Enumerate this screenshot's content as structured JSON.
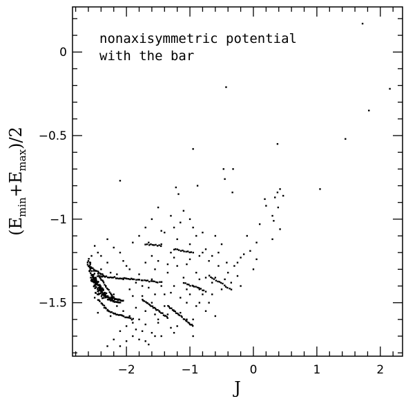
{
  "chart_data": {
    "type": "scatter",
    "title": "",
    "xlabel": "J",
    "ylabel": {
      "open": "(E",
      "sub1": "min",
      "mid": "+E",
      "sub2": "max",
      "close": ")/2"
    },
    "annotation": [
      "nonaxisymmetric potential",
      "with the bar"
    ],
    "xlim": [
      -2.85,
      2.35
    ],
    "ylim": [
      -1.82,
      0.27
    ],
    "xticks": [
      -2,
      -1,
      0,
      1,
      2
    ],
    "yticks": [
      0,
      -0.5,
      -1,
      -1.5
    ],
    "xtick_labels": [
      "−2",
      "−1",
      "0",
      "1",
      "2"
    ],
    "ytick_labels": [
      "0",
      "−0.5",
      "−1",
      "−1.5"
    ],
    "x_minor_step": 0.2,
    "y_minor_step": 0.1,
    "grid": false,
    "series": [
      {
        "points": [
          [
            1.72,
            0.17
          ],
          [
            -0.43,
            -0.21
          ],
          [
            2.15,
            -0.22
          ],
          [
            1.82,
            -0.35
          ],
          [
            1.45,
            -0.52
          ],
          [
            0.38,
            -0.55
          ],
          [
            -0.95,
            -0.58
          ],
          [
            -0.47,
            -0.7
          ],
          [
            -0.32,
            -0.7
          ],
          [
            -2.1,
            -0.77
          ],
          [
            -0.45,
            -0.76
          ],
          [
            -0.88,
            -0.8
          ],
          [
            -0.33,
            -0.84
          ],
          [
            0.42,
            -0.82
          ],
          [
            0.38,
            -0.84
          ],
          [
            0.47,
            -0.86
          ],
          [
            1.05,
            -0.82
          ],
          [
            0.34,
            -0.87
          ],
          [
            0.18,
            -0.88
          ],
          [
            -1.22,
            -0.81
          ],
          [
            -1.18,
            -0.85
          ],
          [
            0.2,
            -0.92
          ],
          [
            0.39,
            -0.93
          ],
          [
            0.3,
            -0.98
          ],
          [
            0.32,
            -1.01
          ],
          [
            0.1,
            -1.03
          ],
          [
            -0.1,
            -1.1
          ],
          [
            0.05,
            -1.14
          ],
          [
            -0.05,
            -1.19
          ],
          [
            -0.15,
            -1.21
          ],
          [
            -0.2,
            -1.23
          ],
          [
            -0.25,
            -1.26
          ],
          [
            -0.3,
            -1.28
          ],
          [
            -0.5,
            -1.15
          ],
          [
            -0.6,
            -1.1
          ],
          [
            -0.8,
            -1.2
          ],
          [
            -0.9,
            -1.1
          ],
          [
            -1.0,
            -1.0
          ],
          [
            -1.1,
            -0.95
          ],
          [
            -1.3,
            -0.98
          ],
          [
            -1.5,
            -0.93
          ],
          [
            -1.6,
            -1.0
          ],
          [
            -1.7,
            -1.05
          ],
          [
            -1.8,
            -1.1
          ],
          [
            -1.4,
            -1.08
          ],
          [
            -1.2,
            -1.12
          ],
          [
            -1.0,
            -1.15
          ],
          [
            -0.7,
            -1.25
          ],
          [
            -0.6,
            -1.35
          ],
          [
            -0.55,
            -1.28
          ],
          [
            -0.4,
            -1.32
          ],
          [
            -2.3,
            -1.12
          ],
          [
            -2.2,
            -1.17
          ],
          [
            -2.1,
            -1.2
          ],
          [
            -2.05,
            -1.25
          ],
          [
            -2.4,
            -1.3
          ],
          [
            -1.0,
            -1.24
          ],
          [
            -0.9,
            -1.32
          ],
          [
            -1.9,
            -1.14
          ],
          [
            -1.65,
            -1.14
          ],
          [
            -1.45,
            -1.15
          ],
          [
            -1.6,
            -1.22
          ],
          [
            -1.5,
            -1.25
          ],
          [
            -1.3,
            -1.2
          ],
          [
            -1.2,
            -1.28
          ],
          [
            -1.35,
            -1.32
          ],
          [
            -1.1,
            -1.35
          ],
          [
            -0.95,
            -1.4
          ],
          [
            -0.85,
            -1.42
          ],
          [
            -0.8,
            -1.45
          ],
          [
            -0.7,
            -1.5
          ],
          [
            -0.75,
            -1.55
          ],
          [
            -0.9,
            -1.52
          ],
          [
            -1.05,
            -1.5
          ],
          [
            -1.15,
            -1.47
          ],
          [
            -1.3,
            -1.44
          ],
          [
            -1.45,
            -1.4
          ],
          [
            -1.6,
            -1.36
          ],
          [
            -1.8,
            -1.33
          ],
          [
            -1.95,
            -1.3
          ],
          [
            -2.05,
            -1.36
          ],
          [
            -2.15,
            -1.33
          ],
          [
            -2.25,
            -1.32
          ],
          [
            -1.95,
            -1.42
          ],
          [
            -1.75,
            -1.46
          ],
          [
            -1.6,
            -1.5
          ],
          [
            -1.4,
            -1.52
          ],
          [
            -1.25,
            -1.55
          ],
          [
            -1.05,
            -1.6
          ],
          [
            -0.95,
            -1.6
          ],
          [
            -1.0,
            -1.63
          ],
          [
            -1.2,
            -1.64
          ],
          [
            -1.3,
            -1.65
          ],
          [
            -1.5,
            -1.62
          ],
          [
            -1.7,
            -1.63
          ],
          [
            -1.8,
            -1.6
          ],
          [
            -1.9,
            -1.62
          ],
          [
            -2.0,
            -1.64
          ],
          [
            -2.1,
            -1.67
          ],
          [
            -2.2,
            -1.72
          ],
          [
            -2.3,
            -1.76
          ],
          [
            -2.1,
            -1.76
          ],
          [
            -2.0,
            -1.73
          ],
          [
            -1.9,
            -1.7
          ],
          [
            -1.8,
            -1.72
          ],
          [
            -1.7,
            -1.73
          ],
          [
            -1.65,
            -1.75
          ],
          [
            -1.55,
            -1.7
          ],
          [
            -1.45,
            -1.7
          ],
          [
            -1.75,
            -1.67
          ],
          [
            -1.85,
            -1.66
          ],
          [
            -1.95,
            -1.58
          ],
          [
            -2.05,
            -1.55
          ],
          [
            -2.15,
            -1.52
          ],
          [
            -1.85,
            -1.53
          ],
          [
            -1.7,
            -1.55
          ],
          [
            -1.55,
            -1.57
          ],
          [
            -1.35,
            -1.57
          ],
          [
            -1.15,
            -1.56
          ],
          [
            -0.85,
            -1.5
          ],
          [
            -0.65,
            -1.45
          ],
          [
            -0.5,
            -1.42
          ],
          [
            -0.35,
            -1.38
          ],
          [
            -0.45,
            -1.36
          ],
          [
            -0.65,
            -1.38
          ],
          [
            -0.85,
            -1.36
          ],
          [
            -1.05,
            -1.42
          ],
          [
            -1.25,
            -1.4
          ],
          [
            -1.4,
            -1.45
          ],
          [
            -1.55,
            -1.45
          ],
          [
            -1.75,
            -1.4
          ],
          [
            -1.85,
            -1.38
          ],
          [
            -2.0,
            -1.28
          ],
          [
            -1.7,
            -1.26
          ],
          [
            -1.55,
            -1.3
          ],
          [
            -1.35,
            -1.27
          ],
          [
            -1.25,
            -1.23
          ],
          [
            -1.05,
            -1.27
          ],
          [
            -0.85,
            -1.22
          ],
          [
            -0.75,
            -1.18
          ],
          [
            -0.65,
            -1.22
          ],
          [
            -0.55,
            -1.2
          ],
          [
            -1.45,
            -1.07
          ],
          [
            -1.25,
            -1.05
          ],
          [
            -1.15,
            -1.02
          ],
          [
            -0.95,
            -1.05
          ],
          [
            -0.8,
            -1.08
          ],
          [
            -1.6,
            -1.68
          ],
          [
            -2.25,
            -1.58
          ],
          [
            -2.35,
            -1.53
          ],
          [
            -2.5,
            -1.47
          ],
          [
            -2.6,
            -1.25
          ],
          [
            -2.55,
            -1.22
          ],
          [
            -2.5,
            -1.16
          ],
          [
            -2.45,
            -1.2
          ],
          [
            -2.4,
            -1.22
          ],
          [
            -2.3,
            -1.26
          ],
          [
            -0.25,
            -1.34
          ],
          [
            -0.2,
            -1.4
          ],
          [
            0.0,
            -1.3
          ],
          [
            0.05,
            -1.24
          ],
          [
            0.3,
            -1.12
          ],
          [
            0.42,
            -1.06
          ],
          [
            -0.42,
            -1.26
          ],
          [
            -0.75,
            -1.35
          ],
          [
            -1.0,
            -1.45
          ],
          [
            -0.6,
            -1.58
          ],
          [
            -0.95,
            -1.7
          ],
          [
            -1.25,
            -1.68
          ],
          [
            -1.5,
            -1.6
          ],
          [
            -2.45,
            -1.56
          ],
          [
            -2.2,
            -1.45
          ],
          [
            -1.9,
            -1.46
          ],
          [
            -1.65,
            -1.41
          ]
        ],
        "streams": [
          {
            "from": [
              -2.6,
              -1.28
            ],
            "to": [
              -2.35,
              -1.34
            ],
            "n": 16
          },
          {
            "from": [
              -2.45,
              -1.34
            ],
            "to": [
              -1.9,
              -1.36
            ],
            "n": 26
          },
          {
            "from": [
              -1.9,
              -1.36
            ],
            "to": [
              -1.45,
              -1.38
            ],
            "n": 18
          },
          {
            "from": [
              -2.6,
              -1.25
            ],
            "to": [
              -2.45,
              -1.45
            ],
            "n": 40,
            "spread": [
              0.08,
              0.035
            ]
          },
          {
            "from": [
              -2.55,
              -1.33
            ],
            "to": [
              -2.35,
              -1.47
            ],
            "n": 50,
            "spread": [
              0.08,
              0.03
            ]
          },
          {
            "from": [
              -2.5,
              -1.38
            ],
            "to": [
              -2.3,
              -1.46
            ],
            "n": 40,
            "spread": [
              0.06,
              0.025
            ]
          },
          {
            "from": [
              -2.35,
              -1.46
            ],
            "to": [
              -2.05,
              -1.49
            ],
            "n": 26
          },
          {
            "from": [
              -2.3,
              -1.48
            ],
            "to": [
              -2.1,
              -1.5
            ],
            "n": 18
          },
          {
            "from": [
              -2.45,
              -1.33
            ],
            "to": [
              -2.2,
              -1.47
            ],
            "n": 20
          },
          {
            "from": [
              -2.3,
              -1.55
            ],
            "to": [
              -1.9,
              -1.6
            ],
            "n": 24
          },
          {
            "from": [
              -1.75,
              -1.48
            ],
            "to": [
              -1.35,
              -1.59
            ],
            "n": 24
          },
          {
            "from": [
              -1.35,
              -1.52
            ],
            "to": [
              -0.95,
              -1.64
            ],
            "n": 22
          },
          {
            "from": [
              -0.7,
              -1.34
            ],
            "to": [
              -0.35,
              -1.42
            ],
            "n": 14
          },
          {
            "from": [
              -1.1,
              -1.38
            ],
            "to": [
              -0.75,
              -1.43
            ],
            "n": 14
          },
          {
            "from": [
              -1.25,
              -1.18
            ],
            "to": [
              -0.95,
              -1.2
            ],
            "n": 12
          },
          {
            "from": [
              -1.7,
              -1.15
            ],
            "to": [
              -1.45,
              -1.16
            ],
            "n": 10
          },
          {
            "from": [
              -2.45,
              -1.48
            ],
            "to": [
              -2.3,
              -1.54
            ],
            "n": 10
          }
        ]
      }
    ]
  }
}
